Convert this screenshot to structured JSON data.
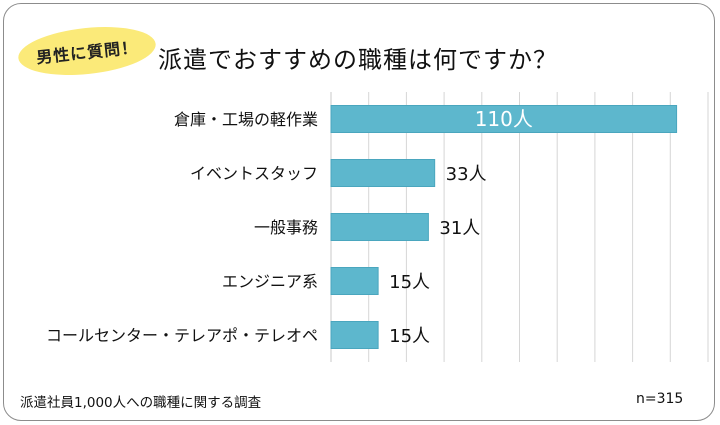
{
  "badge": "男性に質問！",
  "title": "派遣でおすすめの職種は何ですか？",
  "footnote": "派遣社員1,000人への職種に関する調査",
  "sample_size": "n=315",
  "colors": {
    "bar": "#5db7cd",
    "bar_edge": "#4aa6be",
    "badge": "#fbea79",
    "grid": "#d6d6d6"
  },
  "chart_data": {
    "type": "bar",
    "orientation": "horizontal",
    "title": "派遣でおすすめの職種は何ですか？",
    "categories": [
      "倉庫・工場の軽作業",
      "イベントスタッフ",
      "一般事務",
      "エンジニア系",
      "コールセンター・テレアポ・テレオペ"
    ],
    "values": [
      110,
      33,
      31,
      15,
      15
    ],
    "data_labels": [
      "110人",
      "33人",
      "31人",
      "15人",
      "15人"
    ],
    "unit": "人",
    "xlim": [
      0,
      120
    ],
    "grid": true,
    "legend": "none"
  }
}
